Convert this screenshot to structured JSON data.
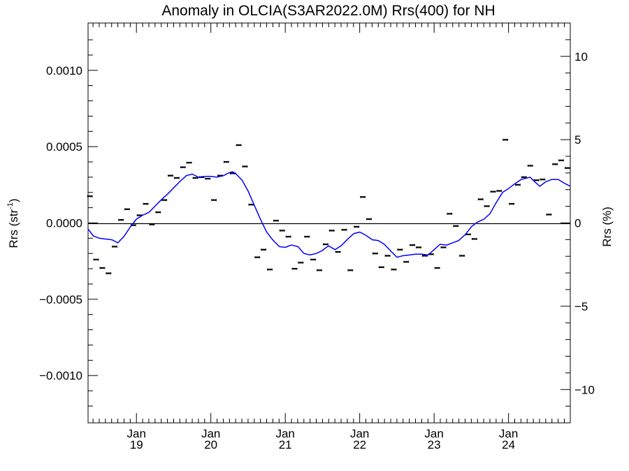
{
  "chart_data": {
    "type": "line",
    "title": "Anomaly in OLCIA(S3AR2022.0M) Rrs(400) for NH",
    "ylabel_left": "Rrs (str",
    "ylabel_left_sup": "-1",
    "ylabel_left_close": ")",
    "ylabel_right": "Rrs (%)",
    "xlim": [
      2018.35,
      2024.83
    ],
    "ylim_left": [
      -0.00131,
      0.00131
    ],
    "ylim_right": [
      -12,
      12
    ],
    "zero_line": true,
    "left_ticks": [
      {
        "value": 0.001,
        "label": "0.0010"
      },
      {
        "value": 0.0005,
        "label": "0.0005"
      },
      {
        "value": 0,
        "label": "0.0000"
      },
      {
        "value": -0.0005,
        "label": "−0.0005"
      },
      {
        "value": -0.001,
        "label": "−0.0010"
      }
    ],
    "right_ticks": [
      {
        "value": 10,
        "label": "10"
      },
      {
        "value": 5,
        "label": "5"
      },
      {
        "value": 0,
        "label": "0"
      },
      {
        "value": -5,
        "label": "−5"
      },
      {
        "value": -10,
        "label": "−10"
      }
    ],
    "x_ticks": [
      {
        "value": 2019.0,
        "month": "Jan",
        "year": "19"
      },
      {
        "value": 2020.0,
        "month": "Jan",
        "year": "20"
      },
      {
        "value": 2021.0,
        "month": "Jan",
        "year": "21"
      },
      {
        "value": 2022.0,
        "month": "Jan",
        "year": "22"
      },
      {
        "value": 2023.0,
        "month": "Jan",
        "year": "23"
      },
      {
        "value": 2024.0,
        "month": "Jan",
        "year": "24"
      }
    ],
    "series": [
      {
        "kind": "points",
        "color": "#000000",
        "x": [
          2018.375,
          2018.458,
          2018.542,
          2018.625,
          2018.708,
          2018.792,
          2018.875,
          2018.958,
          2019.042,
          2019.125,
          2019.208,
          2019.292,
          2019.375,
          2019.458,
          2019.542,
          2019.625,
          2019.708,
          2019.792,
          2019.875,
          2019.958,
          2020.042,
          2020.125,
          2020.208,
          2020.292,
          2020.375,
          2020.458,
          2020.542,
          2020.625,
          2020.708,
          2020.792,
          2020.875,
          2020.958,
          2021.042,
          2021.125,
          2021.208,
          2021.292,
          2021.375,
          2021.458,
          2021.542,
          2021.625,
          2021.708,
          2021.792,
          2021.875,
          2021.958,
          2022.042,
          2022.125,
          2022.208,
          2022.292,
          2022.375,
          2022.458,
          2022.542,
          2022.625,
          2022.708,
          2022.792,
          2022.875,
          2022.958,
          2023.042,
          2023.125,
          2023.208,
          2023.292,
          2023.375,
          2023.458,
          2023.542,
          2023.625,
          2023.708,
          2023.792,
          2023.875,
          2023.958,
          2024.042,
          2024.125,
          2024.208,
          2024.292,
          2024.375,
          2024.458,
          2024.542,
          2024.625,
          2024.708,
          2024.792
        ],
        "y": [
          0.000175,
          -0.00024,
          -0.000295,
          -0.00033,
          -0.000155,
          2e-05,
          9e-05,
          -1.5e-05,
          5e-05,
          0.000125,
          -1e-05,
          7e-05,
          0.00015,
          0.00031,
          0.000295,
          0.000365,
          0.000395,
          0.000295,
          0.0003,
          0.00029,
          0.00015,
          0.00031,
          0.0004,
          0.000325,
          0.00051,
          0.00037,
          0.00012,
          -0.000225,
          -0.000175,
          -0.000305,
          1.5e-05,
          -5e-05,
          -9e-05,
          -0.0003,
          -0.00026,
          -9e-05,
          -0.00024,
          -0.00031,
          -0.00014,
          -5e-05,
          -0.00019,
          -4.5e-05,
          -0.00031,
          -2.5e-05,
          0.00017,
          2.5e-05,
          -0.0002,
          -0.00029,
          -0.000215,
          -0.000305,
          -0.000175,
          -0.000255,
          -0.000145,
          -0.00016,
          -0.000215,
          -0.000205,
          -0.000295,
          -0.00016,
          6e-05,
          -2e-05,
          -0.000215,
          -7.5e-05,
          -0.000105,
          0.000155,
          0.00011,
          0.000205,
          0.00021,
          0.000545,
          0.000125,
          0.00025,
          0.0003,
          0.000375,
          0.00028,
          0.000285,
          5.5e-05,
          0.000385,
          0.00041,
          0.00036
        ]
      },
      {
        "kind": "line",
        "color": "#0000ff",
        "x": [
          2018.35,
          2018.42,
          2018.5,
          2018.58,
          2018.67,
          2018.75,
          2018.83,
          2018.92,
          2019.0,
          2019.08,
          2019.17,
          2019.25,
          2019.33,
          2019.42,
          2019.5,
          2019.58,
          2019.67,
          2019.75,
          2019.83,
          2019.92,
          2020.0,
          2020.08,
          2020.17,
          2020.25,
          2020.29,
          2020.33,
          2020.42,
          2020.5,
          2020.58,
          2020.67,
          2020.75,
          2020.83,
          2020.92,
          2021.0,
          2021.08,
          2021.17,
          2021.25,
          2021.33,
          2021.42,
          2021.5,
          2021.58,
          2021.67,
          2021.75,
          2021.83,
          2021.92,
          2022.0,
          2022.08,
          2022.17,
          2022.25,
          2022.33,
          2022.42,
          2022.5,
          2022.58,
          2022.67,
          2022.75,
          2022.83,
          2022.92,
          2023.0,
          2023.08,
          2023.17,
          2023.25,
          2023.33,
          2023.42,
          2023.5,
          2023.58,
          2023.67,
          2023.75,
          2023.83,
          2023.92,
          2024.0,
          2024.08,
          2024.17,
          2024.25,
          2024.29,
          2024.33,
          2024.42,
          2024.5,
          2024.58,
          2024.67,
          2024.75,
          2024.83
        ],
        "y": [
          -4e-05,
          -8.5e-05,
          -0.0001,
          -0.000105,
          -0.00011,
          -0.00013,
          -9e-05,
          -2.5e-05,
          2.5e-05,
          5e-05,
          7e-05,
          0.00011,
          0.00015,
          0.00019,
          0.00023,
          0.00027,
          0.00031,
          0.00032,
          0.0003,
          0.000305,
          0.000305,
          0.0003,
          0.00031,
          0.00033,
          0.000335,
          0.000325,
          0.00028,
          0.00021,
          0.00012,
          2e-05,
          -6e-05,
          -0.00011,
          -0.000155,
          -0.00016,
          -0.000145,
          -0.000155,
          -0.0002,
          -0.00021,
          -0.0002,
          -0.00018,
          -0.00015,
          -0.000175,
          -0.00015,
          -0.00011,
          -7e-05,
          -6e-05,
          -8e-05,
          -0.00011,
          -0.000115,
          -0.00014,
          -0.000185,
          -0.000225,
          -0.000215,
          -0.00021,
          -0.000205,
          -0.000205,
          -0.00021,
          -0.000175,
          -0.00014,
          -0.000145,
          -0.00013,
          -0.000115,
          -7.5e-05,
          -2.5e-05,
          5e-06,
          2.5e-05,
          6e-05,
          0.00013,
          0.0002,
          0.000225,
          0.000255,
          0.000285,
          0.000295,
          0.0003,
          0.00028,
          0.00024,
          0.00027,
          0.000285,
          0.000285,
          0.00026,
          0.00024
        ]
      }
    ]
  }
}
